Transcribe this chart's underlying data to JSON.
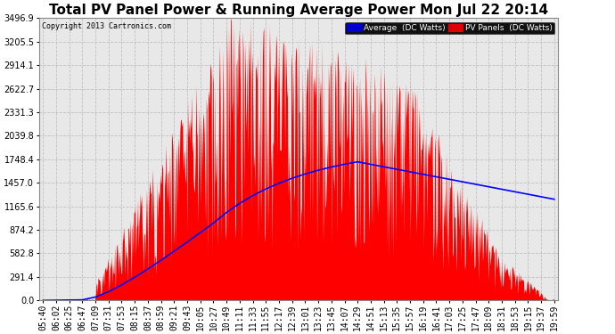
{
  "title": "Total PV Panel Power & Running Average Power Mon Jul 22 20:14",
  "copyright": "Copyright 2013 Cartronics.com",
  "legend_avg": "Average  (DC Watts)",
  "legend_pv": "PV Panels  (DC Watts)",
  "bg_color": "#ffffff",
  "plot_bg_color": "#e8e8e8",
  "grid_color": "#cccccc",
  "pv_color": "#ff0000",
  "avg_color": "#0000ff",
  "title_fontsize": 11,
  "tick_fontsize": 7,
  "ylabel_values": [
    0.0,
    291.4,
    582.8,
    874.2,
    1165.6,
    1457.0,
    1748.4,
    2039.8,
    2331.3,
    2622.7,
    2914.1,
    3205.5,
    3496.9
  ],
  "x_labels": [
    "05:40",
    "06:02",
    "06:25",
    "06:47",
    "07:09",
    "07:31",
    "07:53",
    "08:15",
    "08:37",
    "08:59",
    "09:21",
    "09:43",
    "10:05",
    "10:27",
    "10:49",
    "11:11",
    "11:33",
    "11:55",
    "12:17",
    "12:39",
    "13:01",
    "13:23",
    "13:45",
    "14:07",
    "14:29",
    "14:51",
    "15:13",
    "15:35",
    "15:57",
    "16:19",
    "16:41",
    "17:03",
    "17:25",
    "17:47",
    "18:09",
    "18:31",
    "18:53",
    "19:15",
    "19:37",
    "19:59"
  ],
  "ymax": 3496.9,
  "ymin": 0.0
}
